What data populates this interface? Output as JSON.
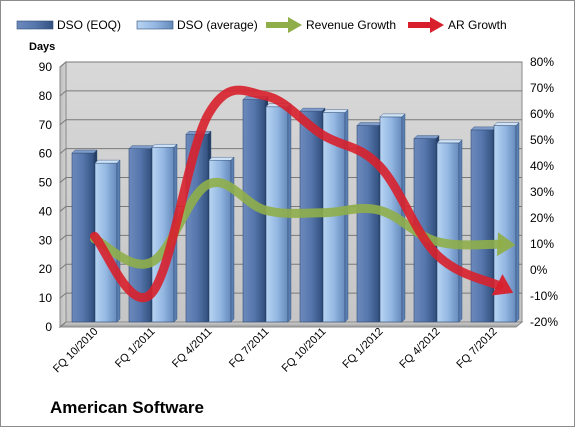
{
  "chart_data": {
    "type": "bar",
    "title": "",
    "subtitle": "American Software",
    "categories": [
      "FQ 10/2010",
      "FQ 1/2011",
      "FQ 4/2011",
      "FQ 7/2011",
      "FQ 10/2011",
      "FQ 1/2012",
      "FQ 4/2012",
      "FQ 7/2012"
    ],
    "ylabel": "Days",
    "ylim": [
      0,
      90
    ],
    "y_ticks": [
      "0",
      "10",
      "20",
      "30",
      "40",
      "50",
      "60",
      "70",
      "80",
      "90"
    ],
    "y2lim": [
      -20,
      80
    ],
    "y2_ticks": [
      "-20%",
      "-10%",
      "0%",
      "10%",
      "20%",
      "30%",
      "40%",
      "50%",
      "60%",
      "70%",
      "80%"
    ],
    "grid": true,
    "legend_position": "top",
    "series": [
      {
        "name": "DSO (EOQ)",
        "kind": "bar",
        "axis": "left",
        "color": "#4f6ea3",
        "values": [
          58.5,
          60,
          65,
          77,
          73,
          68,
          63.5,
          66.5
        ]
      },
      {
        "name": "DSO (average)",
        "kind": "bar",
        "axis": "left",
        "color": "#9ec1e8",
        "values": [
          55,
          60.5,
          56,
          74.5,
          72.5,
          71,
          62,
          68
        ]
      },
      {
        "name": "Revenue Growth",
        "kind": "line",
        "axis": "right",
        "color": "#8fae4a",
        "values": [
          12,
          3,
          33,
          23,
          22,
          23,
          11,
          10
        ]
      },
      {
        "name": "AR Growth",
        "kind": "line",
        "axis": "right",
        "color": "#d8202c",
        "values": [
          13,
          -9,
          60,
          67,
          52,
          40,
          6,
          -5
        ]
      }
    ]
  }
}
